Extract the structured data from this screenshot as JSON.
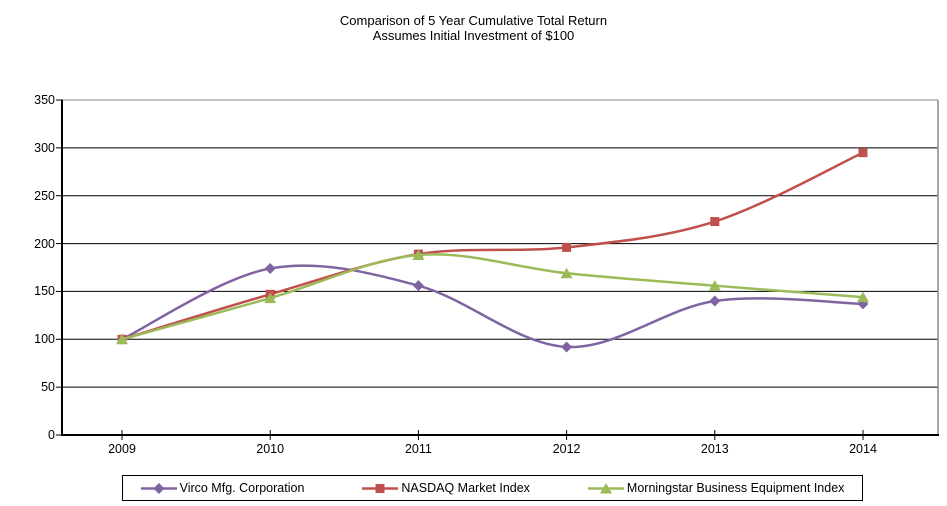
{
  "title": {
    "line1": "Comparison of 5 Year Cumulative Total Return",
    "line2": "Assumes Initial Investment of $100"
  },
  "chart_data": {
    "type": "line",
    "title": "Comparison of 5 Year Cumulative Total Return — Assumes Initial Investment of $100",
    "categories": [
      "2009",
      "2010",
      "2011",
      "2012",
      "2013",
      "2014"
    ],
    "series": [
      {
        "name": "Virco Mfg. Corporation",
        "marker": "diamond",
        "color": "#8064A2",
        "values": [
          100,
          174,
          156,
          92,
          140,
          137
        ]
      },
      {
        "name": "NASDAQ Market Index",
        "marker": "square",
        "color": "#C0504D",
        "values": [
          100,
          147,
          189,
          196,
          223,
          295
        ]
      },
      {
        "name": "Morningstar Business Equipment Index",
        "marker": "triangle",
        "color": "#9BBB59",
        "values": [
          100,
          143,
          188,
          169,
          156,
          144
        ]
      }
    ],
    "ylim": [
      0,
      350
    ],
    "ytick_interval": 50,
    "yticks": [
      "0",
      "50",
      "100",
      "150",
      "200",
      "250",
      "300",
      "350"
    ],
    "xlabel": "",
    "ylabel": "",
    "grid": "horizontal",
    "smoothed_lines": true,
    "legend_position": "bottom"
  },
  "colors": {
    "axis": "#000000",
    "gridline": "#000000",
    "plot_border_gray": "#8a8a8a",
    "series_purple": "#8064A2",
    "series_red": "#C0504D",
    "series_green": "#9BBB59"
  }
}
